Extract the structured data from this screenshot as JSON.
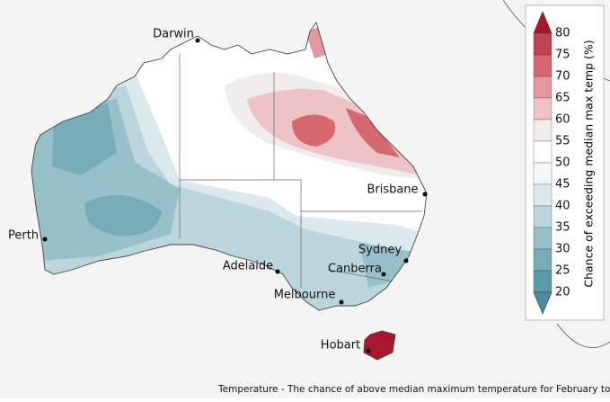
{
  "map": {
    "cities": [
      {
        "name": "Darwin"
      },
      {
        "name": "Brisbane"
      },
      {
        "name": "Perth"
      },
      {
        "name": "Adelaide"
      },
      {
        "name": "Sydney"
      },
      {
        "name": "Canberra"
      },
      {
        "name": "Melbourne"
      },
      {
        "name": "Hobart"
      }
    ],
    "legend": {
      "title": "Chance of exceeding median max temp (%)",
      "ticks": [
        80,
        75,
        70,
        65,
        60,
        55,
        50,
        45,
        40,
        35,
        30,
        25,
        20
      ],
      "colors": [
        "#a8172e",
        "#c3424f",
        "#d5676f",
        "#e2979d",
        "#eec3c6",
        "#f1ecec",
        "#ffffff",
        "#f3f7f8",
        "#dce9ec",
        "#bad5db",
        "#97c0c9",
        "#76adb9",
        "#5b9bac",
        "#4a8ea2"
      ]
    },
    "caption": "Temperature - The chance of above median maximum temperature for February to April"
  }
}
